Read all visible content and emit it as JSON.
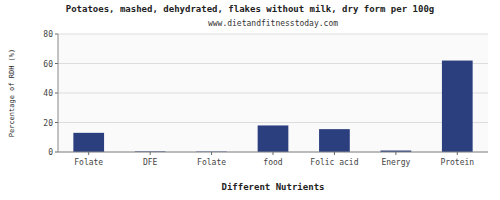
{
  "chart_data": {
    "type": "bar",
    "title": "Potatoes, mashed, dehydrated, flakes without milk, dry form per 100g",
    "subtitle": "www.dietandfitnesstoday.com",
    "xlabel": "Different Nutrients",
    "ylabel": "Percentage of RDH (%)",
    "categories": [
      "Folate",
      "DFE",
      "Folate",
      "food",
      "Folic acid",
      "Energy",
      "Protein"
    ],
    "values": [
      13,
      0.4,
      0.3,
      18,
      15.5,
      1.0,
      62
    ],
    "color": "#2b3f7e",
    "ylim": [
      0,
      80
    ],
    "yticks": [
      0,
      20,
      40,
      60,
      80
    ],
    "grid": true
  }
}
